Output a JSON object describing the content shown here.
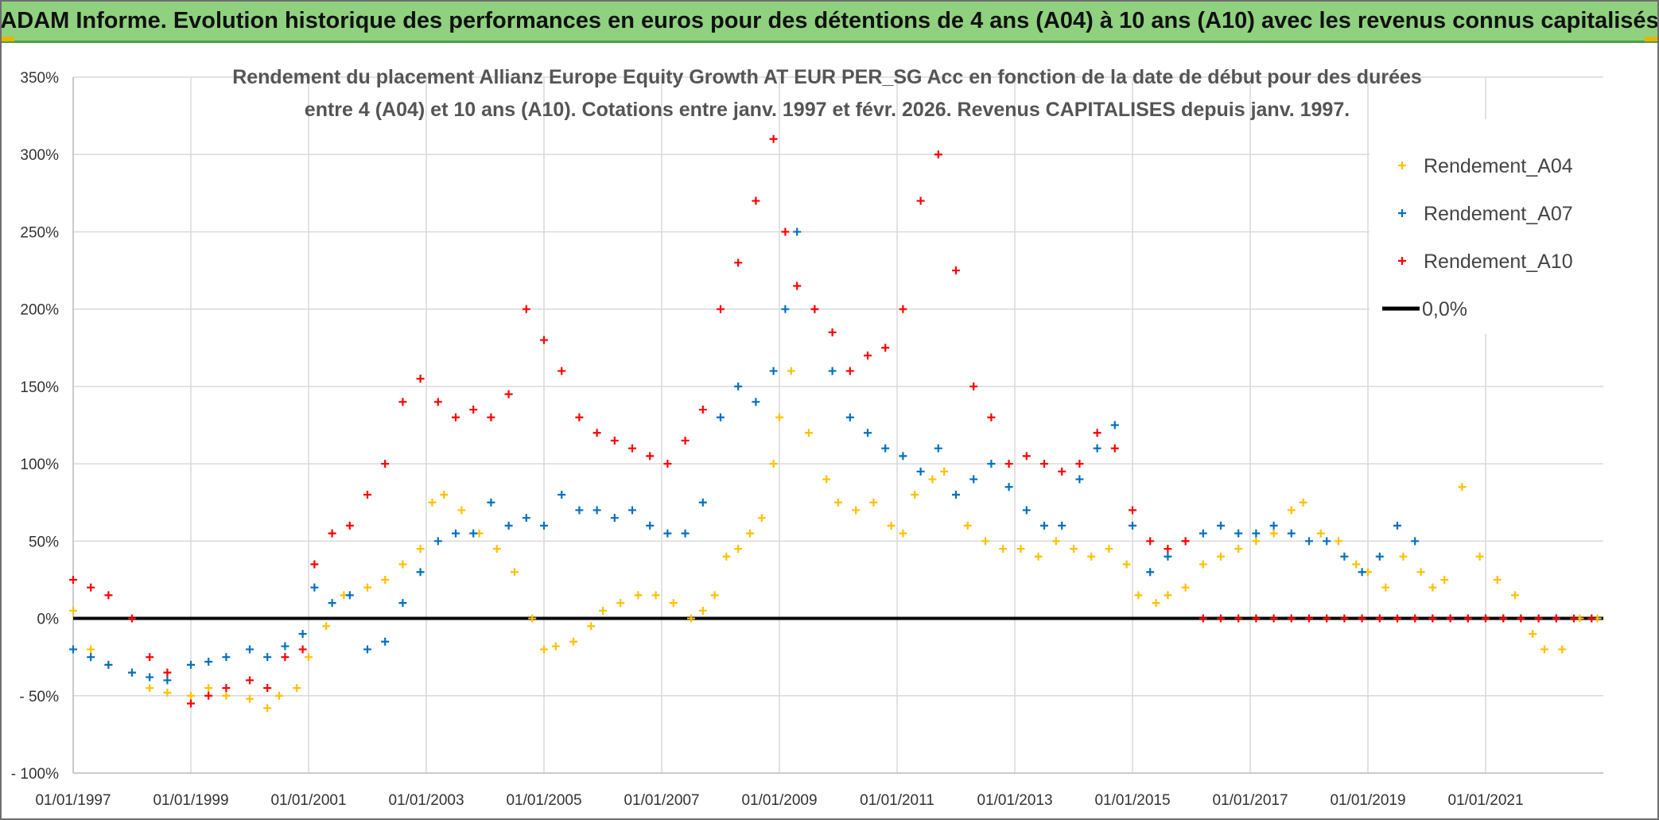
{
  "banner": {
    "title": "ADAM Informe. Evolution historique des performances en euros pour des détentions de 4 ans (A04) à 10 ans (A10) avec les revenus connus capitalisés"
  },
  "colors": {
    "A04": "#ffc000",
    "A07": "#0070c0",
    "A10": "#ff0000",
    "zero": "#000000",
    "banner": "#8fd17f"
  },
  "chart_data": {
    "type": "scatter",
    "title_line1": "Rendement du placement Allianz Europe Equity Growth AT EUR PER_SG Acc en fonction de la date de début pour des durées",
    "title_line2": "entre 4 (A04) et 10 ans (A10). Cotations entre janv. 1997 et févr. 2026. Revenus CAPITALISES depuis janv. 1997.",
    "x_range": [
      1997.0,
      2023.0
    ],
    "x_ticks": [
      1997,
      1999,
      2001,
      2003,
      2005,
      2007,
      2009,
      2011,
      2013,
      2015,
      2017,
      2019,
      2021
    ],
    "x_tick_labels": [
      "01/01/1997",
      "01/01/1999",
      "01/01/2001",
      "01/01/2003",
      "01/01/2005",
      "01/01/2007",
      "01/01/2009",
      "01/01/2011",
      "01/01/2013",
      "01/01/2015",
      "01/01/2017",
      "01/01/2019",
      "01/01/2021"
    ],
    "ylim": [
      -100,
      350
    ],
    "y_ticks": [
      -100,
      -50,
      0,
      50,
      100,
      150,
      200,
      250,
      300,
      350
    ],
    "y_tick_labels": [
      "- 100%",
      "- 50%",
      "0%",
      "50%",
      "100%",
      "150%",
      "200%",
      "250%",
      "300%",
      "350%"
    ],
    "legend": {
      "position": "top-right",
      "entries": [
        {
          "label": "Rendement_A04",
          "series": "A04",
          "marker": "plus"
        },
        {
          "label": "Rendement_A07",
          "series": "A07",
          "marker": "plus"
        },
        {
          "label": "Rendement_A10",
          "series": "A10",
          "marker": "plus"
        },
        {
          "label": "0,0%",
          "series": "zero",
          "marker": "line"
        }
      ]
    },
    "series": [
      {
        "name": "Rendement_A04",
        "key": "A04",
        "x": [
          1997.0,
          1997.3,
          1997.6,
          1998.0,
          1998.3,
          1998.6,
          1999.0,
          1999.3,
          1999.6,
          2000.0,
          2000.3,
          2000.5,
          2000.8,
          2001.0,
          2001.3,
          2001.6,
          2002.0,
          2002.3,
          2002.6,
          2002.9,
          2003.1,
          2003.3,
          2003.6,
          2003.9,
          2004.2,
          2004.5,
          2004.8,
          2005.0,
          2005.2,
          2005.5,
          2005.8,
          2006.0,
          2006.3,
          2006.6,
          2006.9,
          2007.2,
          2007.5,
          2007.7,
          2007.9,
          2008.1,
          2008.3,
          2008.5,
          2008.7,
          2008.9,
          2009.0,
          2009.2,
          2009.5,
          2009.8,
          2010.0,
          2010.3,
          2010.6,
          2010.9,
          2011.1,
          2011.3,
          2011.6,
          2011.8,
          2012.0,
          2012.2,
          2012.5,
          2012.8,
          2013.1,
          2013.4,
          2013.7,
          2014.0,
          2014.3,
          2014.6,
          2014.9,
          2015.1,
          2015.4,
          2015.6,
          2015.9,
          2016.2,
          2016.5,
          2016.8,
          2017.1,
          2017.4,
          2017.7,
          2017.9,
          2018.2,
          2018.5,
          2018.8,
          2019.0,
          2019.3,
          2019.6,
          2019.9,
          2020.1,
          2020.3,
          2020.6,
          2020.9,
          2021.2,
          2021.5,
          2021.8,
          2022.0,
          2022.3,
          2022.6,
          2022.9
        ],
        "values": [
          5,
          -20,
          -30,
          -35,
          -45,
          -48,
          -50,
          -45,
          -50,
          -52,
          -58,
          -50,
          -45,
          -25,
          -5,
          15,
          20,
          25,
          35,
          45,
          75,
          80,
          70,
          55,
          45,
          30,
          0,
          -20,
          -18,
          -15,
          -5,
          5,
          10,
          15,
          15,
          10,
          0,
          5,
          15,
          40,
          45,
          55,
          65,
          100,
          130,
          160,
          120,
          90,
          75,
          70,
          75,
          60,
          55,
          80,
          90,
          95,
          80,
          60,
          50,
          45,
          45,
          40,
          50,
          45,
          40,
          45,
          35,
          15,
          10,
          15,
          20,
          35,
          40,
          45,
          50,
          55,
          70,
          75,
          55,
          50,
          35,
          30,
          20,
          40,
          30,
          20,
          25,
          85,
          40,
          25,
          15,
          -10,
          -20,
          -20,
          0,
          0
        ]
      },
      {
        "name": "Rendement_A07",
        "key": "A07",
        "x": [
          1997.0,
          1997.3,
          1997.6,
          1998.0,
          1998.3,
          1998.6,
          1999.0,
          1999.3,
          1999.6,
          2000.0,
          2000.3,
          2000.6,
          2000.9,
          2001.1,
          2001.4,
          2001.7,
          2002.0,
          2002.3,
          2002.6,
          2002.9,
          2003.2,
          2003.5,
          2003.8,
          2004.1,
          2004.4,
          2004.7,
          2005.0,
          2005.3,
          2005.6,
          2005.9,
          2006.2,
          2006.5,
          2006.8,
          2007.1,
          2007.4,
          2007.7,
          2008.0,
          2008.3,
          2008.6,
          2008.9,
          2009.1,
          2009.3,
          2009.6,
          2009.9,
          2010.2,
          2010.5,
          2010.8,
          2011.1,
          2011.4,
          2011.7,
          2012.0,
          2012.3,
          2012.6,
          2012.9,
          2013.2,
          2013.5,
          2013.8,
          2014.1,
          2014.4,
          2014.7,
          2015.0,
          2015.3,
          2015.6,
          2015.9,
          2016.2,
          2016.5,
          2016.8,
          2017.1,
          2017.4,
          2017.7,
          2018.0,
          2018.3,
          2018.6,
          2018.9,
          2019.2,
          2019.5,
          2019.8,
          2020.1,
          2020.4,
          2020.7,
          2021.0,
          2021.3,
          2021.6,
          2021.9,
          2022.2,
          2022.5,
          2022.8
        ],
        "values": [
          -20,
          -25,
          -30,
          -35,
          -38,
          -40,
          -30,
          -28,
          -25,
          -20,
          -25,
          -18,
          -10,
          20,
          10,
          15,
          -20,
          -15,
          10,
          30,
          50,
          55,
          55,
          75,
          60,
          65,
          60,
          80,
          70,
          70,
          65,
          70,
          60,
          55,
          55,
          75,
          130,
          150,
          140,
          160,
          200,
          250,
          200,
          160,
          130,
          120,
          110,
          105,
          95,
          110,
          80,
          90,
          100,
          85,
          70,
          60,
          60,
          90,
          110,
          125,
          60,
          30,
          40,
          50,
          55,
          60,
          55,
          55,
          60,
          55,
          50,
          50,
          40,
          30,
          40,
          60,
          50,
          0,
          0,
          0,
          0,
          0,
          0,
          0,
          0,
          0,
          0
        ]
      },
      {
        "name": "Rendement_A10",
        "key": "A10",
        "x": [
          1997.0,
          1997.3,
          1997.6,
          1998.0,
          1998.3,
          1998.6,
          1999.0,
          1999.3,
          1999.6,
          2000.0,
          2000.3,
          2000.6,
          2000.9,
          2001.1,
          2001.4,
          2001.7,
          2002.0,
          2002.3,
          2002.6,
          2002.9,
          2003.2,
          2003.5,
          2003.8,
          2004.1,
          2004.4,
          2004.7,
          2005.0,
          2005.3,
          2005.6,
          2005.9,
          2006.2,
          2006.5,
          2006.8,
          2007.1,
          2007.4,
          2007.7,
          2008.0,
          2008.3,
          2008.6,
          2008.9,
          2009.1,
          2009.3,
          2009.6,
          2009.9,
          2010.2,
          2010.5,
          2010.8,
          2011.1,
          2011.4,
          2011.7,
          2012.0,
          2012.3,
          2012.6,
          2012.9,
          2013.2,
          2013.5,
          2013.8,
          2014.1,
          2014.4,
          2014.7,
          2015.0,
          2015.3,
          2015.6,
          2015.9,
          2016.2,
          2016.5,
          2016.8,
          2017.1,
          2017.4,
          2017.7,
          2018.0,
          2018.3,
          2018.6,
          2018.9,
          2019.2,
          2019.5,
          2019.8,
          2020.1,
          2020.4,
          2020.7,
          2021.0,
          2021.3,
          2021.6,
          2021.9,
          2022.2,
          2022.5,
          2022.8
        ],
        "values": [
          25,
          20,
          15,
          0,
          -25,
          -35,
          -55,
          -50,
          -45,
          -40,
          -45,
          -25,
          -20,
          35,
          55,
          60,
          80,
          100,
          140,
          155,
          140,
          130,
          135,
          130,
          145,
          200,
          180,
          160,
          130,
          120,
          115,
          110,
          105,
          100,
          115,
          135,
          200,
          230,
          270,
          310,
          250,
          215,
          200,
          185,
          160,
          170,
          175,
          200,
          270,
          300,
          225,
          150,
          130,
          100,
          105,
          100,
          95,
          100,
          120,
          110,
          70,
          50,
          45,
          50,
          0,
          0,
          0,
          0,
          0,
          0,
          0,
          0,
          0,
          0,
          0,
          0,
          0,
          0,
          0,
          0,
          0,
          0,
          0,
          0,
          0,
          0,
          0
        ]
      }
    ]
  }
}
